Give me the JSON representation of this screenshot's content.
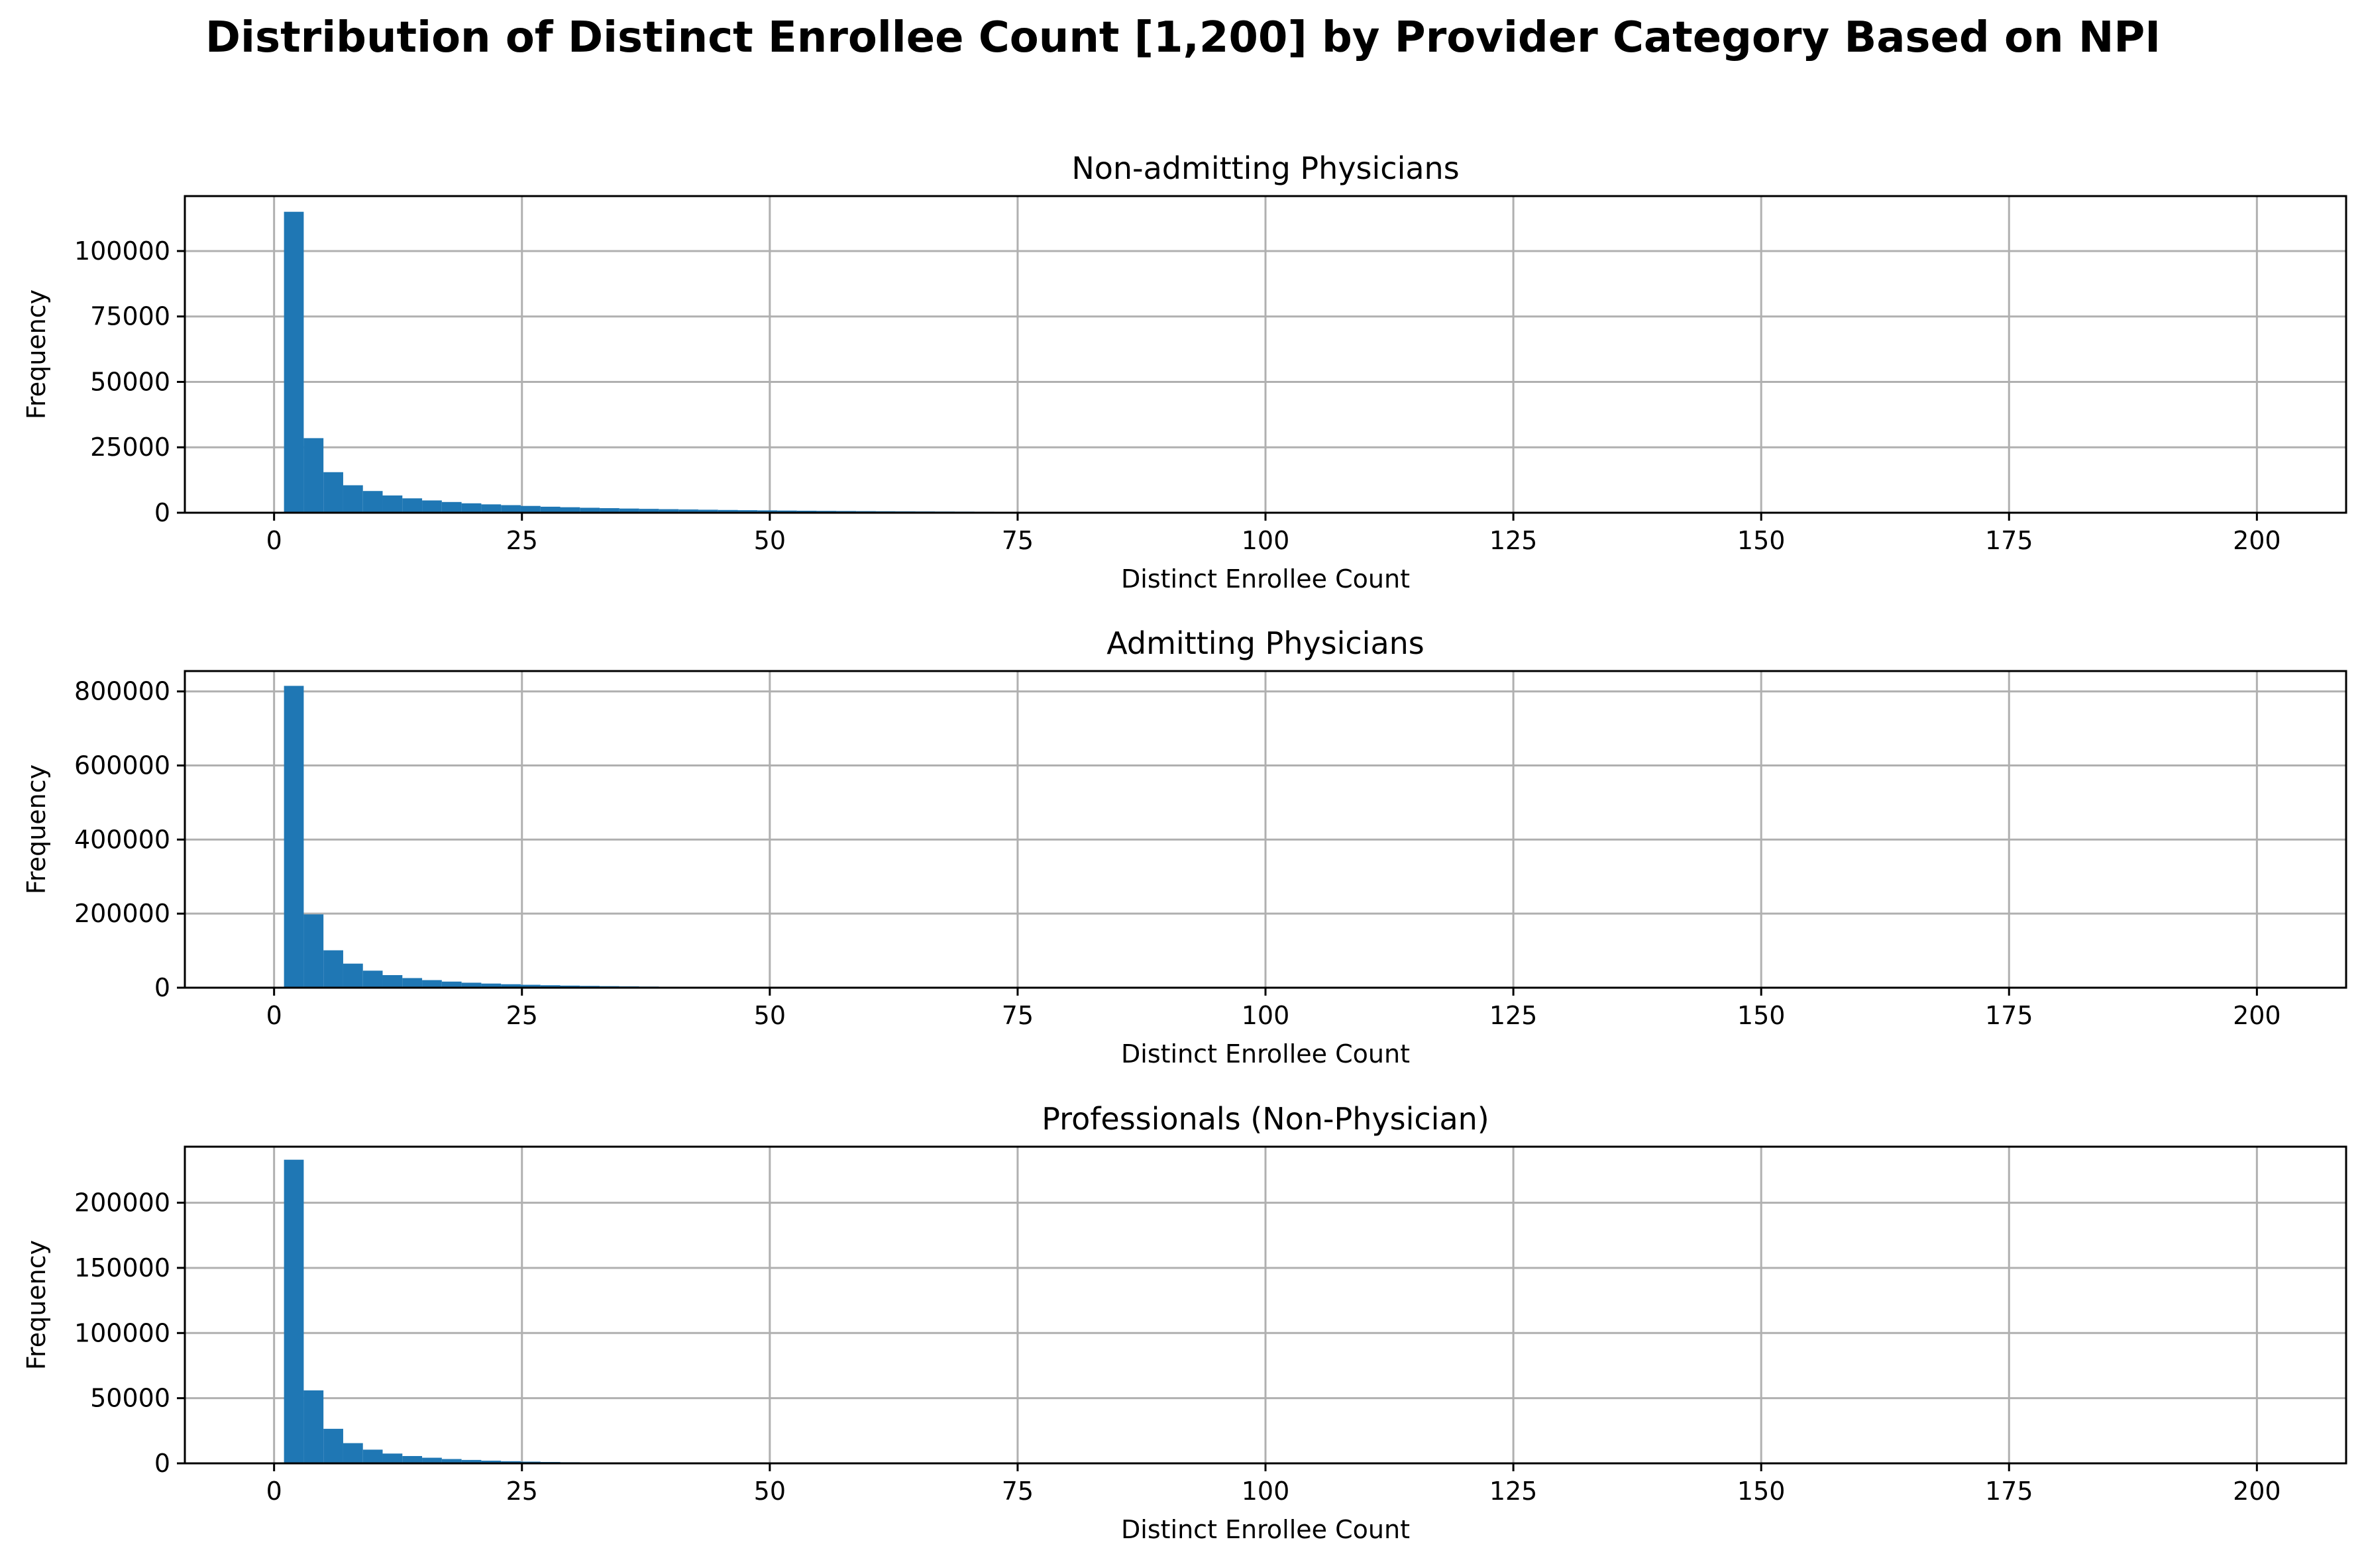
{
  "figure": {
    "title": "Distribution of Distinct Enrollee Count [1,200] by Provider Category Based on NPI"
  },
  "style": {
    "bar_color": "#1f77b4",
    "grid_color": "#b0b0b0"
  },
  "chart_data": [
    {
      "type": "bar",
      "title": "Non-admitting Physicians",
      "xlabel": "Distinct Enrollee Count",
      "ylabel": "Frequency",
      "xlim": [
        -9,
        209
      ],
      "ylim": [
        0,
        121000
      ],
      "grid": true,
      "bin_width": 1.99,
      "bin_start": 1,
      "xticks": [
        "0",
        "25",
        "50",
        "75",
        "100",
        "125",
        "150",
        "175",
        "200"
      ],
      "xtick_values": [
        0,
        25,
        50,
        75,
        100,
        125,
        150,
        175,
        200
      ],
      "yticks": [
        "0",
        "25000",
        "50000",
        "75000",
        "100000"
      ],
      "ytick_values": [
        0,
        25000,
        50000,
        75000,
        100000
      ],
      "values": [
        115000,
        28500,
        15500,
        10500,
        8300,
        6600,
        5500,
        4700,
        4100,
        3600,
        3200,
        2900,
        2600,
        2300,
        2100,
        1900,
        1750,
        1600,
        1480,
        1360,
        1250,
        1150,
        1060,
        980,
        900,
        830,
        770,
        710,
        660,
        610,
        565,
        525,
        490,
        455,
        425,
        395,
        370,
        345,
        322,
        300,
        280,
        262,
        245,
        228,
        213,
        199,
        186,
        174,
        163,
        152,
        142,
        133,
        124,
        116,
        109,
        102,
        95,
        89,
        83,
        78,
        73,
        68,
        64,
        60,
        56,
        52,
        49,
        46,
        43,
        40,
        37,
        35,
        33,
        31,
        29,
        27,
        25,
        23,
        22,
        20,
        19,
        18,
        17,
        16,
        15,
        14,
        13,
        12,
        11,
        10,
        10,
        9,
        8,
        8,
        7,
        7,
        6,
        6,
        5,
        5
      ]
    },
    {
      "type": "bar",
      "title": "Admitting Physicians",
      "xlabel": "Distinct Enrollee Count",
      "ylabel": "Frequency",
      "xlim": [
        -9,
        209
      ],
      "ylim": [
        0,
        855000
      ],
      "grid": true,
      "bin_width": 1.99,
      "bin_start": 1,
      "xticks": [
        "0",
        "25",
        "50",
        "75",
        "100",
        "125",
        "150",
        "175",
        "200"
      ],
      "xtick_values": [
        0,
        25,
        50,
        75,
        100,
        125,
        150,
        175,
        200
      ],
      "yticks": [
        "0",
        "200000",
        "400000",
        "600000",
        "800000"
      ],
      "ytick_values": [
        0,
        200000,
        400000,
        600000,
        800000
      ],
      "values": [
        815000,
        198000,
        101000,
        65000,
        46000,
        34000,
        26000,
        20500,
        16500,
        13500,
        11200,
        9400,
        7900,
        6700,
        5700,
        4900,
        4200,
        3600,
        3100,
        2700,
        2350,
        2050,
        1800,
        1580,
        1390,
        1220,
        1080,
        950,
        840,
        740,
        660,
        585,
        520,
        462,
        411,
        366,
        326,
        291,
        260,
        232,
        207,
        185,
        165,
        148,
        132,
        118,
        106,
        95,
        85,
        76,
        68,
        61,
        55,
        49,
        44,
        40,
        36,
        32,
        29,
        26,
        23,
        21,
        19,
        17,
        15,
        14,
        12,
        11,
        10,
        9,
        8,
        7,
        7,
        6,
        5,
        5,
        4,
        4,
        4,
        3,
        3,
        3,
        2,
        2,
        2,
        2,
        2,
        1,
        1,
        1,
        1,
        1,
        1,
        1,
        1,
        1,
        1,
        1,
        1,
        1
      ]
    },
    {
      "type": "bar",
      "title": "Professionals (Non-Physician)",
      "xlabel": "Distinct Enrollee Count",
      "ylabel": "Frequency",
      "xlim": [
        -9,
        209
      ],
      "ylim": [
        0,
        243000
      ],
      "grid": true,
      "bin_width": 1.99,
      "bin_start": 1,
      "xticks": [
        "0",
        "25",
        "50",
        "75",
        "100",
        "125",
        "150",
        "175",
        "200"
      ],
      "xtick_values": [
        0,
        25,
        50,
        75,
        100,
        125,
        150,
        175,
        200
      ],
      "yticks": [
        "0",
        "50000",
        "100000",
        "150000",
        "200000"
      ],
      "ytick_values": [
        0,
        50000,
        100000,
        150000,
        200000
      ],
      "values": [
        233000,
        56000,
        26500,
        15500,
        10500,
        7500,
        5600,
        4300,
        3300,
        2600,
        2050,
        1630,
        1300,
        1040,
        840,
        680,
        550,
        450,
        365,
        300,
        245,
        200,
        165,
        136,
        112,
        92,
        76,
        63,
        52,
        43,
        36,
        30,
        25,
        21,
        17,
        14,
        12,
        10,
        8,
        7,
        6,
        5,
        4,
        4,
        3,
        3,
        2,
        2,
        2,
        1,
        1,
        1,
        1,
        1,
        1,
        1,
        1,
        1,
        1,
        1,
        0,
        0,
        0,
        0,
        0,
        0,
        0,
        0,
        0,
        0,
        0,
        0,
        0,
        0,
        0,
        0,
        0,
        0,
        0,
        0,
        0,
        0,
        0,
        0,
        0,
        0,
        0,
        0,
        0,
        0,
        0,
        0,
        0,
        0,
        0,
        0,
        0,
        0,
        0,
        0
      ]
    }
  ]
}
